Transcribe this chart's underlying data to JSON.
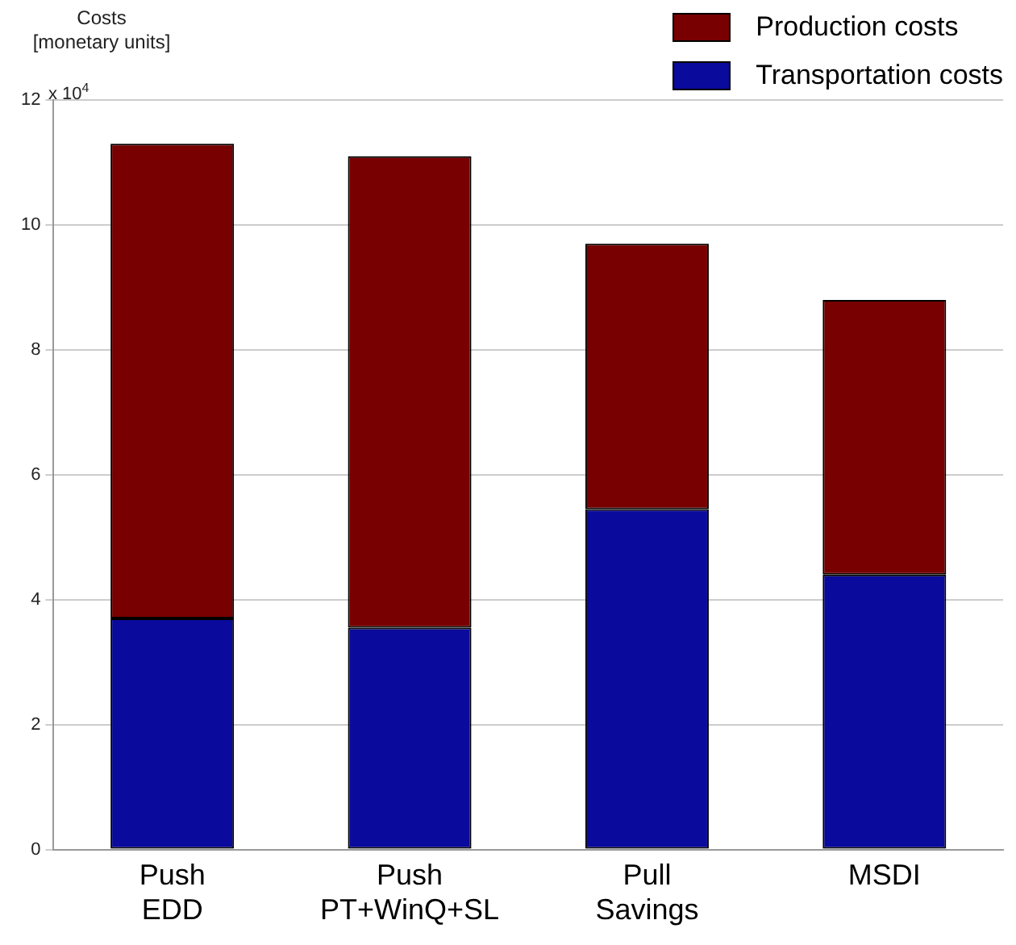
{
  "chart_data": {
    "type": "bar",
    "ylabel": "Costs\n[monetary units]",
    "annotations": [
      "x 10$^{4}$"
    ],
    "categories": [
      "Push\nEDD",
      "Push\nPT+WinQ+SL",
      "Pull\nSavings",
      "MSDI"
    ],
    "series": [
      {
        "name": "Transportation costs",
        "color": "#0a0a9c",
        "values": [
          3.7,
          3.55,
          5.45,
          4.4
        ]
      },
      {
        "name": "Production costs",
        "color": "#780000",
        "values": [
          7.6,
          7.55,
          4.25,
          4.4
        ]
      }
    ],
    "stacked": true,
    "ylim": [
      0,
      12
    ],
    "yticks": [
      0,
      2,
      4,
      6,
      8,
      10,
      12
    ],
    "grid": "y",
    "legend": "top right"
  }
}
